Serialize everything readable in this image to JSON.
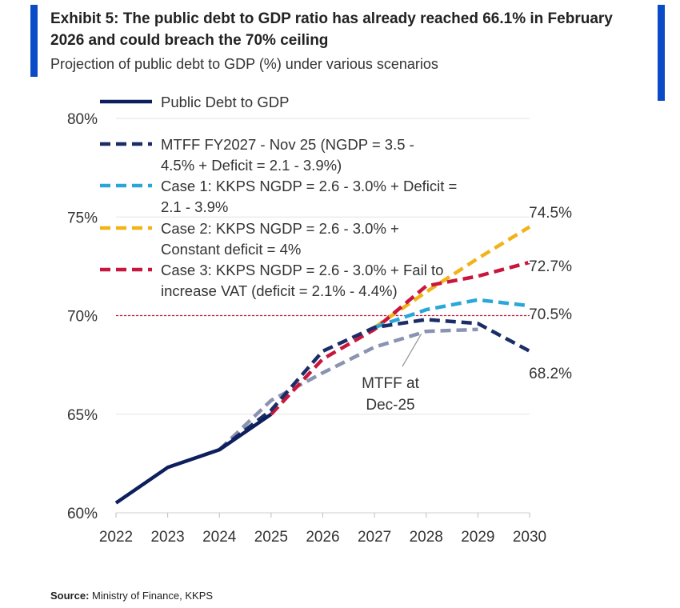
{
  "header": {
    "title": "Exhibit 5: The public debt to GDP ratio has already reached 66.1% in February 2026 and could breach the 70% ceiling",
    "subtitle": "Projection of public debt to GDP (%) under various scenarios"
  },
  "footer": {
    "source_label": "Source:",
    "source_text": "Ministry of Finance, KKPS"
  },
  "colors": {
    "accent": "#0a4cc7",
    "actual": "#0d1f5c",
    "mtff_nov25": "#1b2d66",
    "case1": "#2aa7d9",
    "case2": "#f0b419",
    "case3": "#c8173d",
    "mtff_dec25": "#8a93b0",
    "ceiling": "#c8173d"
  },
  "chart_data": {
    "type": "line",
    "title": "Projection of public debt to GDP (%) under various scenarios",
    "xlabel": "",
    "ylabel": "",
    "x": [
      2022,
      2023,
      2024,
      2025,
      2026,
      2027,
      2028,
      2029,
      2030
    ],
    "x_tick_labels": [
      "2022",
      "2023",
      "2024",
      "2025",
      "2026",
      "2027",
      "2028",
      "2029",
      "2030"
    ],
    "ylim": [
      60,
      80
    ],
    "y_ticks": [
      60,
      65,
      70,
      75,
      80
    ],
    "y_tick_labels": [
      "60%",
      "65%",
      "70%",
      "75%",
      "80%"
    ],
    "grid": true,
    "reference_line": {
      "value": 70,
      "style": "dotted",
      "color": "#c8173d"
    },
    "series": [
      {
        "name": "Public Debt to GDP",
        "key": "actual",
        "style": "solid",
        "points": [
          [
            2022,
            60.5
          ],
          [
            2023,
            62.3
          ],
          [
            2024,
            63.2
          ],
          [
            2025,
            65.0
          ]
        ]
      },
      {
        "name": "MTFF at Dec-25",
        "key": "mtff_dec25",
        "style": "dashed",
        "points": [
          [
            2024,
            63.2
          ],
          [
            2025,
            65.7
          ],
          [
            2026,
            67.1
          ],
          [
            2027,
            68.4
          ],
          [
            2028,
            69.2
          ],
          [
            2029,
            69.3
          ]
        ]
      },
      {
        "name": "MTFF FY2027 - Nov 25 (NGDP = 3.5 - 4.5% + Deficit = 2.1 - 3.9%)",
        "key": "mtff_nov25",
        "style": "dashed",
        "points": [
          [
            2024,
            63.2
          ],
          [
            2025,
            65.2
          ],
          [
            2026,
            68.2
          ],
          [
            2027,
            69.4
          ],
          [
            2028,
            69.8
          ],
          [
            2029,
            69.6
          ],
          [
            2030,
            68.2
          ]
        ]
      },
      {
        "name": "Case 1: KKPS NGDP = 2.6 - 3.0% + Deficit = 2.1 - 3.9%",
        "key": "case1",
        "style": "dashed",
        "points": [
          [
            2027,
            69.4
          ],
          [
            2028,
            70.3
          ],
          [
            2029,
            70.8
          ],
          [
            2030,
            70.5
          ]
        ]
      },
      {
        "name": "Case 2: KKPS NGDP = 2.6 - 3.0% + Constant deficit = 4%",
        "key": "case2",
        "style": "dashed",
        "points": [
          [
            2027,
            69.4
          ],
          [
            2028,
            71.2
          ],
          [
            2029,
            72.9
          ],
          [
            2030,
            74.5
          ]
        ]
      },
      {
        "name": "Case 3: KKPS NGDP = 2.6 - 3.0% + Fail to increase VAT (deficit = 2.1% - 4.4%)",
        "key": "case3",
        "style": "dashed",
        "points": [
          [
            2025,
            65.0
          ],
          [
            2026,
            67.8
          ],
          [
            2027,
            69.3
          ],
          [
            2028,
            71.5
          ],
          [
            2029,
            72.0
          ],
          [
            2030,
            72.7
          ]
        ]
      }
    ],
    "legend": {
      "placement": "top-left",
      "entries": [
        {
          "key": "actual",
          "lines": [
            "Public Debt to GDP"
          ]
        },
        {
          "key": "mtff_nov25",
          "lines": [
            "MTFF FY2027 - Nov 25 (NGDP = 3.5 -",
            "4.5% + Deficit = 2.1 - 3.9%)"
          ]
        },
        {
          "key": "case1",
          "lines": [
            "Case 1: KKPS NGDP = 2.6 - 3.0% + Deficit =",
            "2.1 - 3.9%"
          ]
        },
        {
          "key": "case2",
          "lines": [
            "Case 2: KKPS NGDP = 2.6 - 3.0% +",
            "Constant deficit = 4%"
          ]
        },
        {
          "key": "case3",
          "lines": [
            "Case 3: KKPS NGDP = 2.6 - 3.0% + Fail to",
            "increase VAT (deficit = 2.1% - 4.4%)"
          ]
        }
      ]
    },
    "end_labels": [
      {
        "series": "case2",
        "value": 74.5,
        "text": "74.5%"
      },
      {
        "series": "case3",
        "value": 72.7,
        "text": "72.7%"
      },
      {
        "series": "case1",
        "value": 70.5,
        "text": "70.5%"
      },
      {
        "series": "mtff_nov25",
        "value": 68.2,
        "text": "68.2%"
      }
    ],
    "annotations": [
      {
        "text_lines": [
          "MTFF at",
          "Dec-25"
        ],
        "points_to": [
          2028,
          69.2
        ]
      }
    ]
  }
}
